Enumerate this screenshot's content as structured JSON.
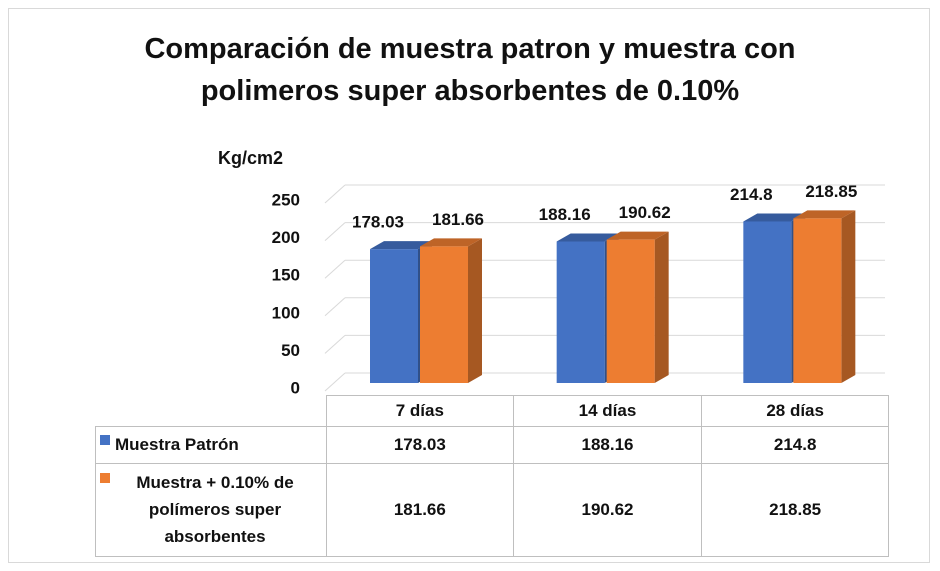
{
  "chart_data": {
    "type": "bar3d",
    "title": "Comparación de muestra patron y muestra con polimeros super absorbentes de 0.10%",
    "y_label": "Kg/cm2",
    "categories": [
      "7 días",
      "14 días",
      "28 días"
    ],
    "series": [
      {
        "name": "Muestra Patrón",
        "color": "#4472c4",
        "values": [
          178.03,
          188.16,
          214.8
        ]
      },
      {
        "name": "Muestra + 0.10% de polímeros super absorbentes",
        "color": "#ed7d31",
        "values": [
          181.66,
          190.62,
          218.85
        ]
      }
    ],
    "ylim": [
      0,
      250
    ],
    "yticks": [
      0,
      50,
      100,
      150,
      200,
      250
    ],
    "grid": true,
    "data_table": true
  }
}
